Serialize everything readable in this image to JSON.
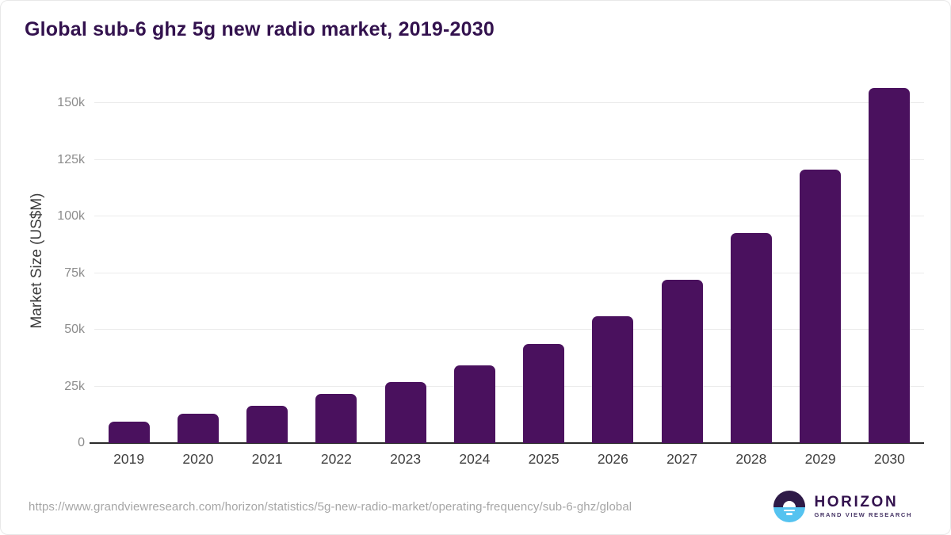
{
  "chart_data": {
    "type": "bar",
    "title": "Global sub-6 ghz 5g new radio market, 2019-2030",
    "categories": [
      "2019",
      "2020",
      "2021",
      "2022",
      "2023",
      "2024",
      "2025",
      "2026",
      "2027",
      "2028",
      "2029",
      "2030"
    ],
    "values": [
      9500,
      12800,
      16300,
      21600,
      26800,
      34300,
      43700,
      56000,
      72100,
      92800,
      120500,
      156700
    ],
    "xlabel": "",
    "ylabel": "Market Size (US$M)",
    "ylim": [
      0,
      162500
    ],
    "ytick_values": [
      0,
      25000,
      50000,
      75000,
      100000,
      125000,
      150000
    ],
    "ytick_labels": [
      "0",
      "25k",
      "50k",
      "75k",
      "100k",
      "125k",
      "150k"
    ],
    "grid": "horizontal",
    "legend": "none",
    "bar_color": "#4a115e",
    "value_unit": "US$M"
  },
  "footer": {
    "source_url": "https://www.grandviewresearch.com/horizon/statistics/5g-new-radio-market/operating-frequency/sub-6-ghz/global",
    "logo": {
      "brand": "HORIZON",
      "subtitle": "GRAND VIEW RESEARCH"
    }
  },
  "colors": {
    "title": "#33124e",
    "bar": "#4a115e",
    "gridline": "#ebebeb",
    "axis_line": "#2b2b2b",
    "ytick_text": "#8c8c8c",
    "xtick_text": "#3f3f3f",
    "source_text": "#a6a6a6",
    "logo_dark": "#2e1a47",
    "logo_blue": "#55c3f0"
  }
}
